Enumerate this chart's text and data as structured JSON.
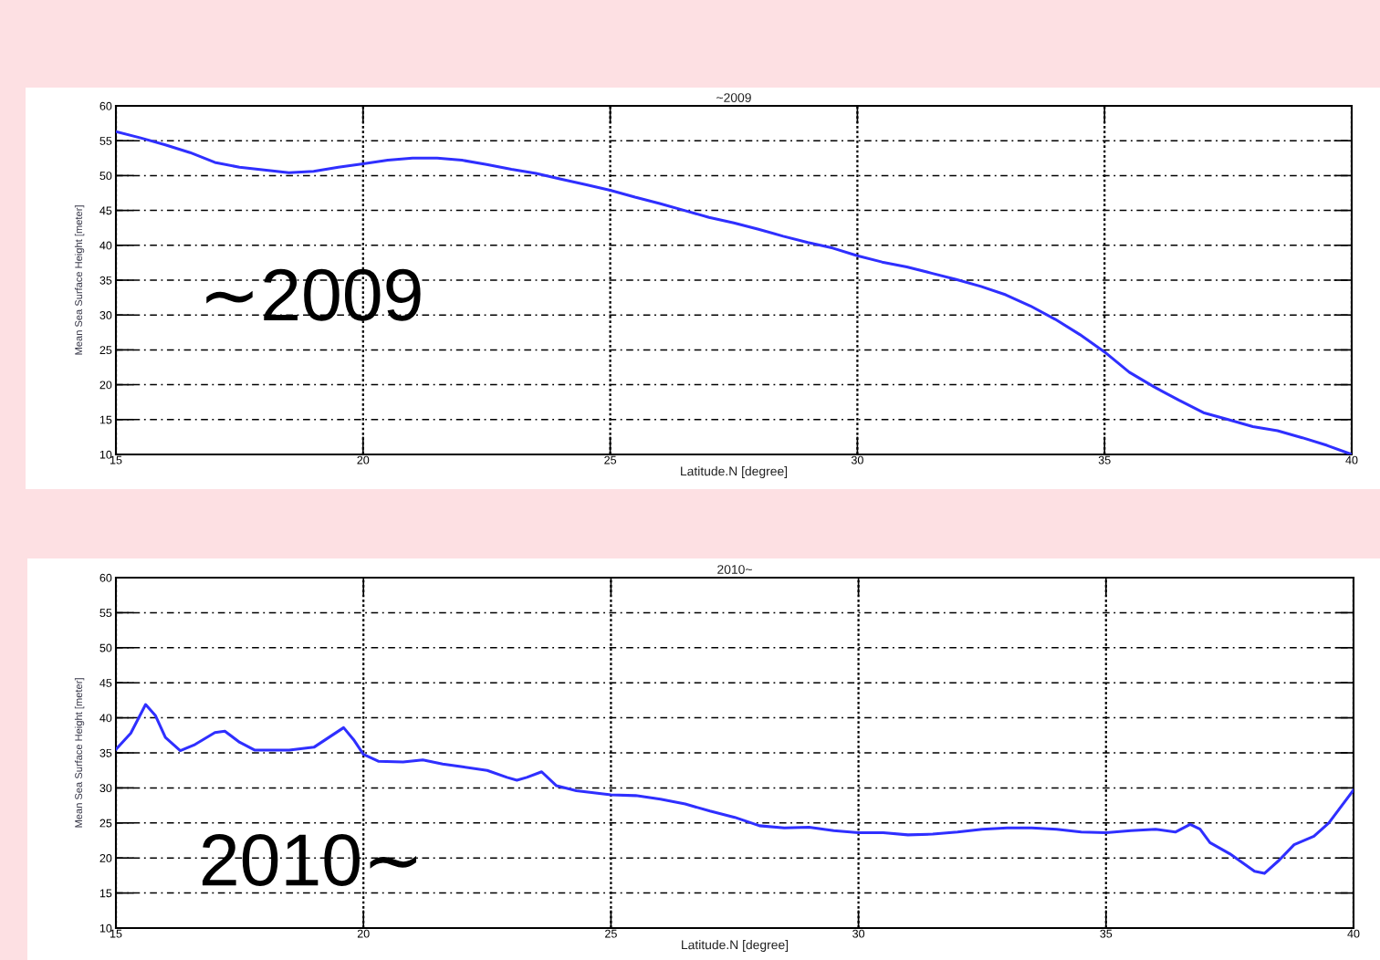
{
  "chart_data": [
    {
      "type": "line",
      "title": "~2009",
      "xlabel": "Latitude.N [degree]",
      "ylabel": "Mean Sea Surface Height [meter]",
      "annotations": [
        "∼2009"
      ],
      "x": [
        15,
        15.5,
        16,
        16.5,
        17,
        17.5,
        18,
        18.5,
        19,
        19.5,
        20,
        20.5,
        21,
        21.5,
        22,
        22.5,
        23,
        23.5,
        24,
        24.5,
        25,
        25.5,
        26,
        26.5,
        27,
        27.5,
        28,
        28.5,
        29,
        29.5,
        30,
        30.5,
        31,
        31.5,
        32,
        32.5,
        33,
        33.5,
        34,
        34.5,
        35,
        35.5,
        36,
        36.5,
        37,
        37.5,
        38,
        38.5,
        39,
        39.5,
        40
      ],
      "series": [
        {
          "color": "#2f2fff",
          "values": [
            56.3,
            55.4,
            54.4,
            53.3,
            51.9,
            51.2,
            50.8,
            50.4,
            50.6,
            51.2,
            51.7,
            52.2,
            52.5,
            52.5,
            52.2,
            51.6,
            50.9,
            50.3,
            49.5,
            48.7,
            47.9,
            46.9,
            46.0,
            45.0,
            44.0,
            43.2,
            42.3,
            41.3,
            40.4,
            39.6,
            38.5,
            37.6,
            36.9,
            36.0,
            35.1,
            34.1,
            32.9,
            31.3,
            29.4,
            27.2,
            24.7,
            21.8,
            19.7,
            17.8,
            16.0,
            15.0,
            14.0,
            13.4,
            12.4,
            11.3,
            10.0
          ]
        }
      ],
      "xlim": [
        15,
        40
      ],
      "ylim": [
        10,
        60
      ],
      "xticks": [
        15,
        20,
        25,
        30,
        35,
        40
      ],
      "yticks": [
        10,
        15,
        20,
        25,
        30,
        35,
        40,
        45,
        50,
        55,
        60
      ],
      "grid": true
    },
    {
      "type": "line",
      "title": "2010~",
      "xlabel": "Latitude.N [degree]",
      "ylabel": "Mean Sea Surface Height [meter]",
      "annotations": [
        "2010∼"
      ],
      "x": [
        15.0,
        15.3,
        15.6,
        15.8,
        16.0,
        16.3,
        16.6,
        17.0,
        17.2,
        17.5,
        17.8,
        18.5,
        19.0,
        19.3,
        19.6,
        19.8,
        20.0,
        20.3,
        20.8,
        21.2,
        21.6,
        22.0,
        22.5,
        22.9,
        23.1,
        23.3,
        23.6,
        23.9,
        24.3,
        25.0,
        25.5,
        26.0,
        26.5,
        27.0,
        27.5,
        28.0,
        28.5,
        29.0,
        29.5,
        30.0,
        30.5,
        31.0,
        31.5,
        32.0,
        32.5,
        33.0,
        33.5,
        34.0,
        34.5,
        35.0,
        35.5,
        36.0,
        36.4,
        36.7,
        36.9,
        37.1,
        37.5,
        38.0,
        38.2,
        38.5,
        38.8,
        39.2,
        39.5,
        40.0
      ],
      "series": [
        {
          "color": "#2f2fff",
          "values": [
            35.5,
            37.8,
            41.9,
            40.3,
            37.2,
            35.3,
            36.2,
            37.9,
            38.1,
            36.5,
            35.4,
            35.4,
            35.8,
            37.2,
            38.6,
            36.9,
            34.8,
            33.8,
            33.7,
            34.0,
            33.4,
            33.0,
            32.5,
            31.5,
            31.1,
            31.5,
            32.3,
            30.3,
            29.6,
            29.0,
            28.9,
            28.4,
            27.7,
            26.7,
            25.8,
            24.6,
            24.3,
            24.4,
            23.9,
            23.6,
            23.6,
            23.3,
            23.4,
            23.7,
            24.1,
            24.3,
            24.3,
            24.1,
            23.7,
            23.6,
            23.9,
            24.1,
            23.7,
            24.8,
            24.1,
            22.2,
            20.6,
            18.1,
            17.8,
            19.7,
            21.9,
            23.1,
            25.0,
            29.7
          ]
        }
      ],
      "xlim": [
        15,
        40
      ],
      "ylim": [
        10,
        60
      ],
      "xticks": [
        15,
        20,
        25,
        30,
        35,
        40
      ],
      "yticks": [
        10,
        15,
        20,
        25,
        30,
        35,
        40,
        45,
        50,
        55,
        60
      ],
      "grid": true
    }
  ]
}
